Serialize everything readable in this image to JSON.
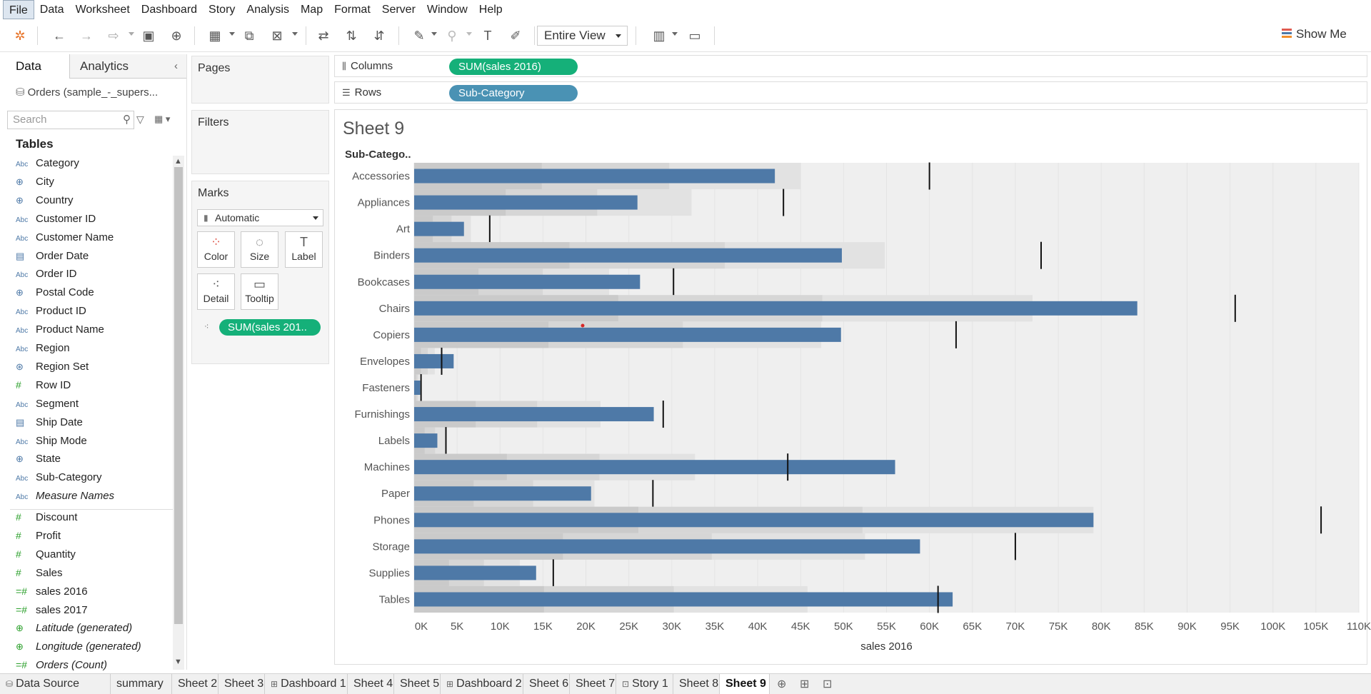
{
  "menu": [
    "File",
    "Data",
    "Worksheet",
    "Dashboard",
    "Story",
    "Analysis",
    "Map",
    "Format",
    "Server",
    "Window",
    "Help"
  ],
  "toolbar": {
    "view_select": "Entire View",
    "show_me": "Show Me"
  },
  "datapane": {
    "tab_data": "Data",
    "tab_analytics": "Analytics",
    "datasource": "Orders (sample_-_supers...",
    "search_placeholder": "Search",
    "tables_label": "Tables",
    "dimensions": [
      {
        "icon": "Abc",
        "name": "Category"
      },
      {
        "icon": "globe",
        "name": "City"
      },
      {
        "icon": "globe",
        "name": "Country"
      },
      {
        "icon": "Abc",
        "name": "Customer ID"
      },
      {
        "icon": "Abc",
        "name": "Customer Name"
      },
      {
        "icon": "calendar",
        "name": "Order Date"
      },
      {
        "icon": "Abc",
        "name": "Order ID"
      },
      {
        "icon": "globe",
        "name": "Postal Code"
      },
      {
        "icon": "Abc",
        "name": "Product ID"
      },
      {
        "icon": "Abc",
        "name": "Product Name"
      },
      {
        "icon": "Abc",
        "name": "Region"
      },
      {
        "icon": "set",
        "name": "Region Set"
      },
      {
        "icon": "#",
        "name": "Row ID"
      },
      {
        "icon": "Abc",
        "name": "Segment"
      },
      {
        "icon": "calendar",
        "name": "Ship Date"
      },
      {
        "icon": "Abc",
        "name": "Ship Mode"
      },
      {
        "icon": "globe",
        "name": "State"
      },
      {
        "icon": "Abc",
        "name": "Sub-Category"
      },
      {
        "icon": "Abc",
        "name": "Measure Names",
        "italic": true
      }
    ],
    "measures": [
      {
        "icon": "#",
        "name": "Discount"
      },
      {
        "icon": "#",
        "name": "Profit"
      },
      {
        "icon": "#",
        "name": "Quantity"
      },
      {
        "icon": "#",
        "name": "Sales"
      },
      {
        "icon": "=#",
        "name": "sales 2016"
      },
      {
        "icon": "=#",
        "name": "sales 2017"
      },
      {
        "icon": "globe",
        "name": "Latitude (generated)",
        "italic": true
      },
      {
        "icon": "globe",
        "name": "Longitude (generated)",
        "italic": true
      },
      {
        "icon": "=#",
        "name": "Orders (Count)",
        "italic": true
      }
    ]
  },
  "cards": {
    "pages": "Pages",
    "filters": "Filters",
    "marks": "Marks",
    "marks_type": "Automatic",
    "mark_buttons": [
      "Color",
      "Size",
      "Label",
      "Detail",
      "Tooltip"
    ],
    "mark_pill": "SUM(sales 201.."
  },
  "shelves": {
    "columns_label": "Columns",
    "columns_pill": "SUM(sales 2016)",
    "rows_label": "Rows",
    "rows_pill": "Sub-Category"
  },
  "sheet": {
    "title": "Sheet 9",
    "row_header": "Sub-Catego.."
  },
  "chart_data": {
    "type": "bar",
    "subtype": "bullet",
    "xlabel": "sales 2016",
    "xlim": [
      0,
      110000
    ],
    "xticks": [
      "0K",
      "5K",
      "10K",
      "15K",
      "20K",
      "25K",
      "30K",
      "35K",
      "40K",
      "45K",
      "50K",
      "55K",
      "60K",
      "65K",
      "70K",
      "75K",
      "80K",
      "85K",
      "90K",
      "95K",
      "100K",
      "105K",
      "110K"
    ],
    "bar_color": "#4e79a7",
    "categories": [
      "Accessories",
      "Appliances",
      "Art",
      "Binders",
      "Bookcases",
      "Chairs",
      "Copiers",
      "Envelopes",
      "Fasteners",
      "Furnishings",
      "Labels",
      "Machines",
      "Paper",
      "Phones",
      "Storage",
      "Supplies",
      "Tables"
    ],
    "series": [
      {
        "name": "SUM(sales 2016)",
        "values": [
          42000,
          26000,
          5800,
          49800,
          26300,
          84200,
          49700,
          4600,
          700,
          27900,
          2700,
          56000,
          20600,
          79100,
          58900,
          14200,
          62700
        ]
      },
      {
        "name": "Reference line",
        "values": [
          60000,
          43000,
          8800,
          73000,
          30200,
          95600,
          63100,
          3200,
          800,
          29000,
          3700,
          43500,
          27800,
          105600,
          70000,
          16200,
          61000
        ]
      },
      {
        "name": "Distribution band",
        "values": [
          45000,
          32300,
          6600,
          54800,
          22700,
          72000,
          47400,
          2400,
          600,
          21700,
          3700,
          32700,
          21000,
          79100,
          52500,
          12300,
          45800
        ]
      }
    ]
  }
}
